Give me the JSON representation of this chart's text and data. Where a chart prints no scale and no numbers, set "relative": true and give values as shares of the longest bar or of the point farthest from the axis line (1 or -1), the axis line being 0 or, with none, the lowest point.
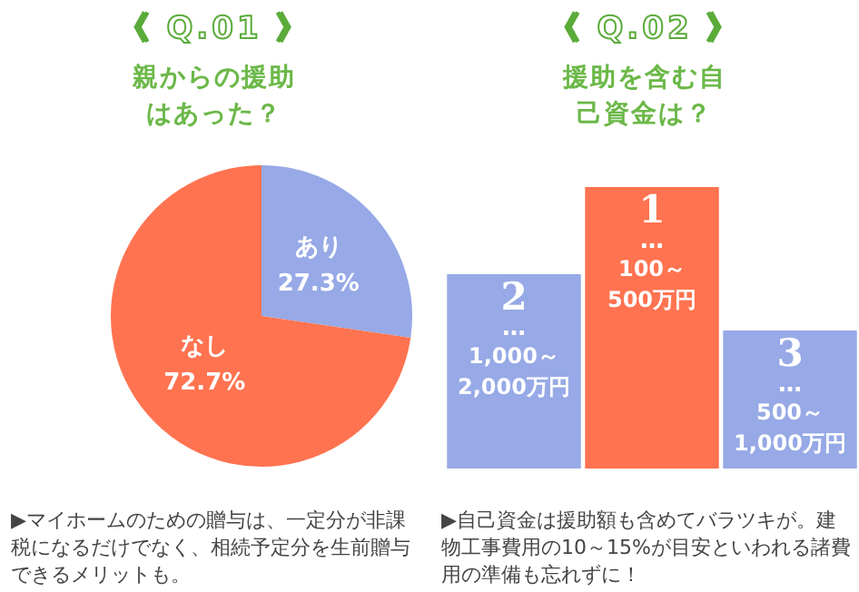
{
  "chart_data": [
    {
      "type": "pie",
      "title": "《 Q.01 》",
      "subtitle": "親からの援助はあった？",
      "categories": [
        "あり",
        "なし"
      ],
      "values": [
        27.3,
        72.7
      ],
      "colors": [
        "#97a9e6",
        "#ff7350"
      ],
      "value_labels": [
        "27.3%",
        "72.7%"
      ],
      "legend": false,
      "annotations": [
        "▶マイホームのための贈与は、一定分が非課税になるだけでなく、相続予定分を生前贈与できるメリットも。"
      ]
    },
    {
      "type": "bar",
      "title": "《 Q.02 》",
      "subtitle": "援助を含む自己資金は？",
      "relative": true,
      "categories": [
        "1,000～2,000万円",
        "100～500万円",
        "500～1,000万円"
      ],
      "values": [
        0.69,
        1,
        0.49
      ],
      "colors": [
        "#97a9e6",
        "#ff7350",
        "#97a9e6"
      ],
      "legend": false,
      "annotations": [
        "▶自己資金は援助額も含めてバラツキが。建物工事費用の10～15%が目安といわれる諸費用の準備も忘れずに！",
        {
          "text": "2",
          "x": "1,000～2,000万円",
          "y": 0.69
        },
        {
          "text": "…",
          "x": "1,000～2,000万円",
          "y": 0.69
        },
        {
          "text": "1",
          "x": "100～500万円",
          "y": 1
        },
        {
          "text": "…",
          "x": "100～500万円",
          "y": 1
        },
        {
          "text": "3",
          "x": "500～1,000万円",
          "y": 0.49
        },
        {
          "text": "…",
          "x": "500～1,000万円",
          "y": 0.49
        }
      ]
    }
  ]
}
